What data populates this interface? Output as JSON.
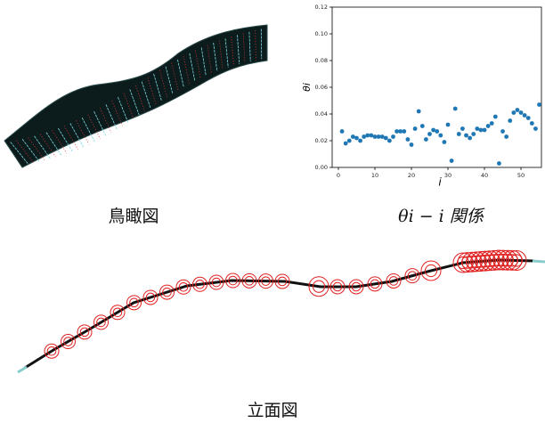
{
  "captions": {
    "birdseye": "鳥瞰図",
    "relation": "θi − i 関係",
    "elevation": "立面図"
  },
  "chart_data": {
    "type": "scatter",
    "xlabel": "i",
    "ylabel": "θi",
    "color": "#1f77b4",
    "x": [
      1,
      2,
      3,
      4,
      5,
      6,
      7,
      8,
      9,
      10,
      11,
      12,
      13,
      14,
      15,
      16,
      17,
      18,
      19,
      20,
      21,
      22,
      23,
      24,
      25,
      26,
      27,
      28,
      29,
      30,
      31,
      32,
      33,
      34,
      35,
      36,
      37,
      38,
      39,
      40,
      41,
      42,
      43,
      44,
      45,
      46,
      47,
      48,
      49,
      50,
      51,
      52,
      53,
      54,
      55
    ],
    "values": [
      0.027,
      0.018,
      0.02,
      0.023,
      0.022,
      0.02,
      0.023,
      0.024,
      0.024,
      0.023,
      0.023,
      0.023,
      0.022,
      0.02,
      0.023,
      0.027,
      0.027,
      0.027,
      0.021,
      0.017,
      0.029,
      0.042,
      0.031,
      0.021,
      0.025,
      0.028,
      0.027,
      0.024,
      0.019,
      0.032,
      0.005,
      0.044,
      0.025,
      0.029,
      0.024,
      0.022,
      0.025,
      0.029,
      0.028,
      0.028,
      0.031,
      0.033,
      0.038,
      0.003,
      0.027,
      0.023,
      0.035,
      0.041,
      0.043,
      0.041,
      0.039,
      0.037,
      0.033,
      0.029,
      0.047
    ],
    "xlim": [
      -1.7,
      55.6
    ],
    "ylim": [
      0,
      0.12
    ],
    "xticks": [
      0,
      10,
      20,
      30,
      40,
      50
    ],
    "yticks": [
      {
        "value": 0,
        "label": "0.00"
      },
      {
        "value": 0.02,
        "label": "0.02"
      },
      {
        "value": 0.04,
        "label": "0.04"
      },
      {
        "value": 0.06,
        "label": "0.06"
      },
      {
        "value": 0.08,
        "label": "0.08"
      },
      {
        "value": 0.1,
        "label": "0.10"
      },
      {
        "value": 0.12,
        "label": "0.12"
      }
    ]
  }
}
